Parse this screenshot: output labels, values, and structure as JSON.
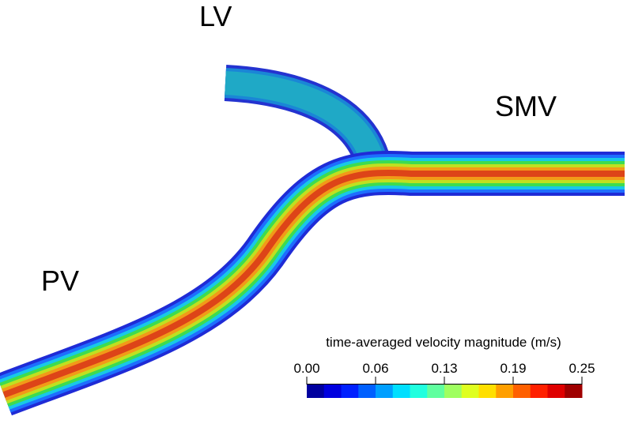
{
  "labels": [
    "LV",
    "SMV",
    "PV"
  ],
  "colorbar": {
    "title": "time-averaged velocity magnitude (m/s)",
    "range": [
      0,
      0.25
    ],
    "ticks": [
      {
        "value": 0,
        "label": "0.00"
      },
      {
        "value": 0.0625,
        "label": "0.06"
      },
      {
        "value": 0.125,
        "label": "0.13"
      },
      {
        "value": 0.1875,
        "label": "0.19"
      },
      {
        "value": 0.25,
        "label": "0.25"
      }
    ]
  }
}
